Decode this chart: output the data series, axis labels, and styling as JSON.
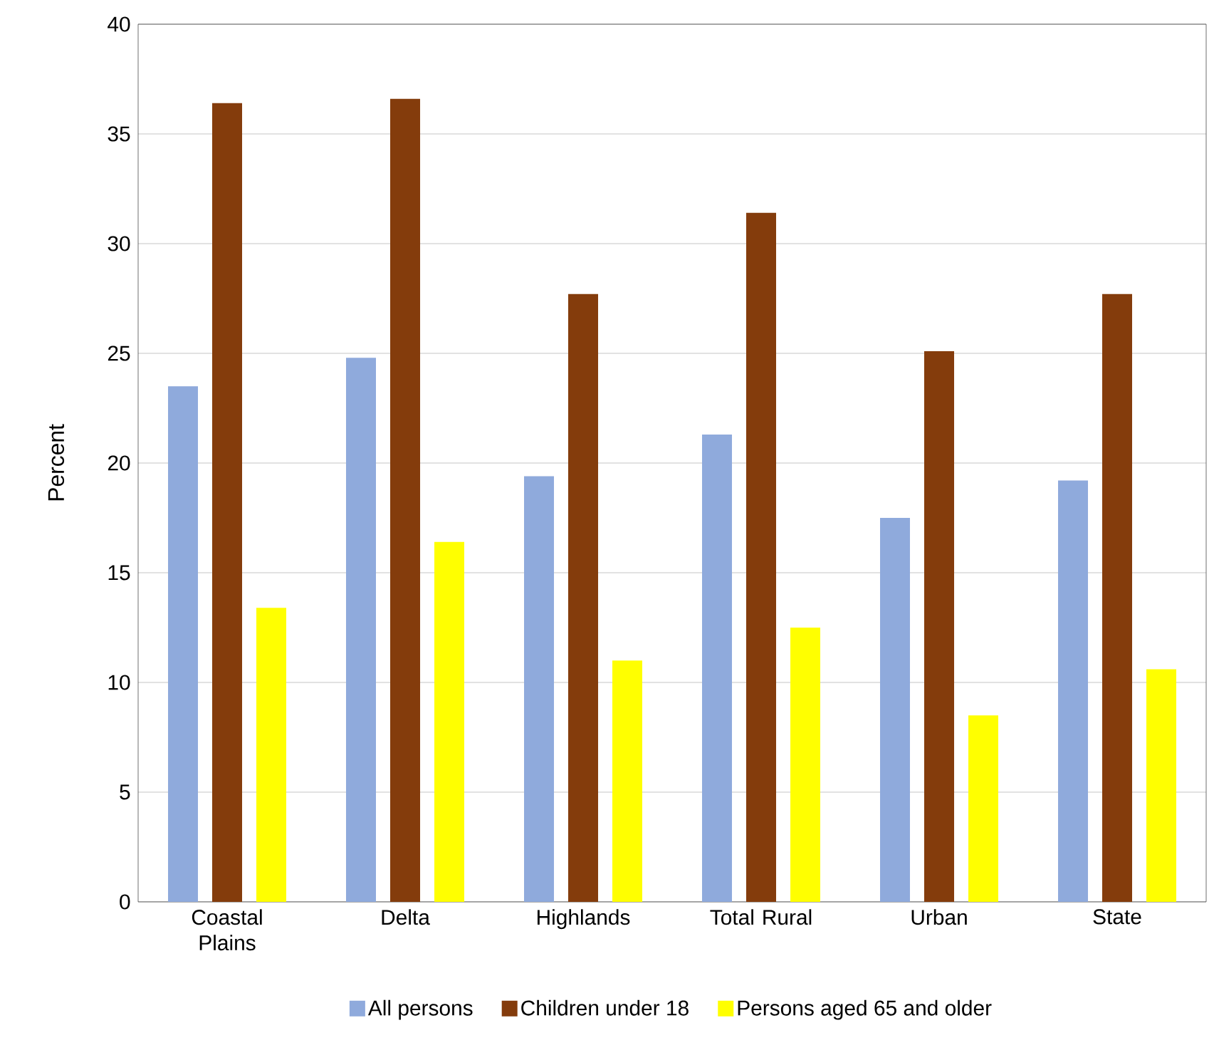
{
  "chart_data": {
    "type": "bar",
    "ylabel": "Percent",
    "categories": [
      "Coastal Plains",
      "Delta",
      "Highlands",
      "Total Rural",
      "Urban",
      "State"
    ],
    "series": [
      {
        "name": "All persons",
        "color": "#8faadc",
        "values": [
          23.5,
          24.8,
          19.4,
          21.3,
          17.5,
          19.2
        ]
      },
      {
        "name": "Children under 18",
        "color": "#843c0c",
        "values": [
          36.4,
          36.6,
          27.7,
          31.4,
          25.1,
          27.7
        ]
      },
      {
        "name": "Persons aged 65 and older",
        "color": "#ffff00",
        "values": [
          13.4,
          16.4,
          11.0,
          12.5,
          8.5,
          10.6
        ]
      }
    ],
    "ylim": [
      0,
      40
    ],
    "yticks": [
      0,
      5,
      10,
      15,
      20,
      25,
      30,
      35,
      40
    ],
    "grid": "y",
    "legend": "bottom"
  }
}
